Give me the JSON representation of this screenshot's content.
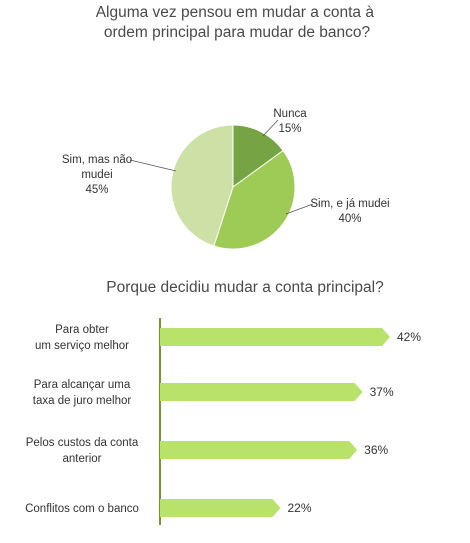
{
  "chart_data": [
    {
      "type": "pie",
      "title": [
        "Alguma vez pensou em mudar a conta à",
        "ordem principal para mudar de banco?"
      ],
      "slices": [
        {
          "label": [
            "Nunca",
            "15%"
          ],
          "value": 15,
          "color": "#76a444"
        },
        {
          "label": [
            "Sim, e já mudei",
            "40%"
          ],
          "value": 40,
          "color": "#9ecb56"
        },
        {
          "label": [
            "Sim, mas não",
            "mudei",
            "45%"
          ],
          "value": 45,
          "color": "#cde1a6"
        }
      ]
    },
    {
      "type": "bar",
      "orientation": "horizontal",
      "title": "Porque decidiu mudar a conta principal?",
      "xlim": [
        0,
        42
      ],
      "bar_color": "#b8e26a",
      "bars": [
        {
          "category": [
            "Para obter",
            "um serviço melhor"
          ],
          "value": 42,
          "value_label": "42%"
        },
        {
          "category": [
            "Para alcançar uma",
            "taxa de juro melhor"
          ],
          "value": 37,
          "value_label": "37%"
        },
        {
          "category": [
            "Pelos custos da conta",
            "anterior"
          ],
          "value": 36,
          "value_label": "36%"
        },
        {
          "category": [
            "Conflitos com o banco"
          ],
          "value": 22,
          "value_label": "22%"
        }
      ]
    }
  ]
}
